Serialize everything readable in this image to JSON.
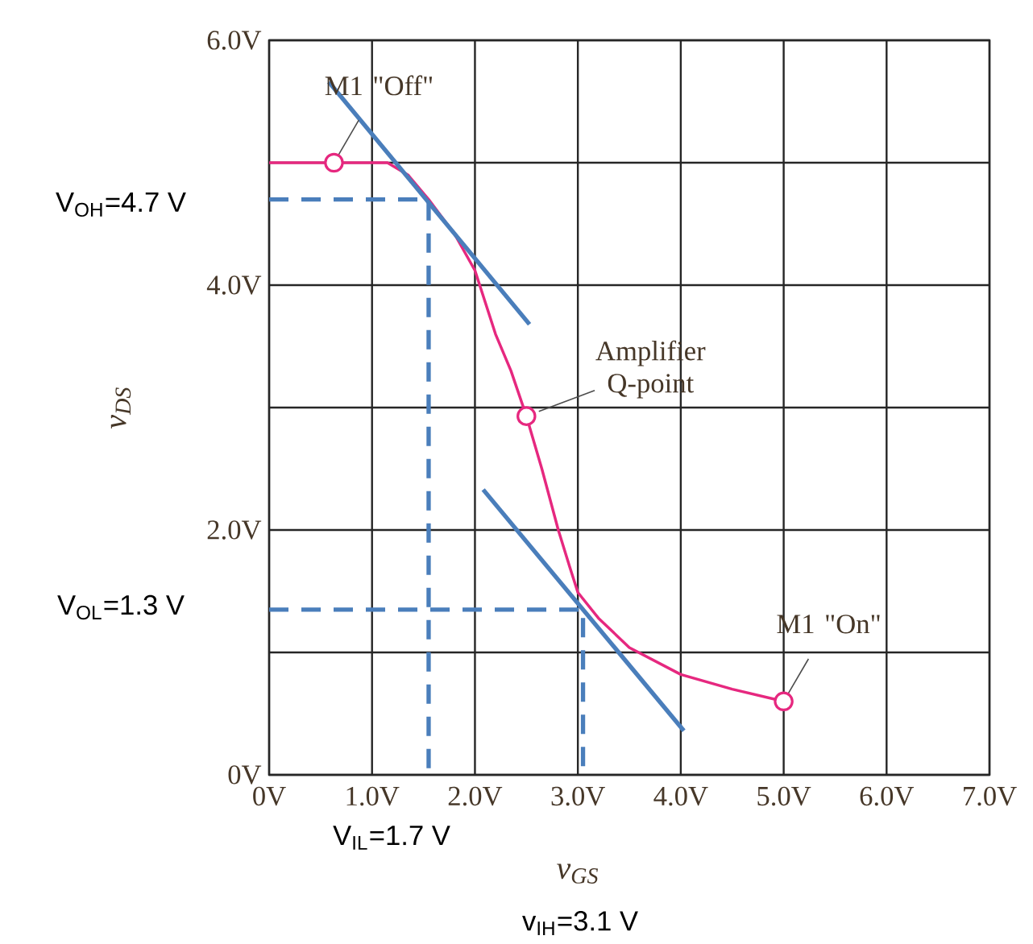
{
  "chart_data": {
    "type": "line",
    "xlabel": "v$_{GS}$",
    "ylabel": "v$_{DS}$",
    "xlim": [
      0,
      7
    ],
    "ylim": [
      0,
      6
    ],
    "xticks": [
      {
        "value": 0,
        "label": "0V"
      },
      {
        "value": 1,
        "label": "1.0V"
      },
      {
        "value": 2,
        "label": "2.0V"
      },
      {
        "value": 3,
        "label": "3.0V"
      },
      {
        "value": 4,
        "label": "4.0V"
      },
      {
        "value": 5,
        "label": "5.0V"
      },
      {
        "value": 6,
        "label": "6.0V"
      },
      {
        "value": 7,
        "label": "7.0V"
      }
    ],
    "yticks": [
      {
        "value": 0,
        "label": "0V"
      },
      {
        "value": 1,
        "label": null
      },
      {
        "value": 2,
        "label": "2.0V"
      },
      {
        "value": 3,
        "label": null
      },
      {
        "value": 4,
        "label": "4.0V"
      },
      {
        "value": 5,
        "label": null
      },
      {
        "value": 6,
        "label": "6.0V"
      }
    ],
    "grid": true,
    "series": [
      {
        "type": "line",
        "color": "#e6287f",
        "x": [
          0,
          0.63,
          1.15,
          1.35,
          1.55,
          1.8,
          2.0,
          2.2,
          2.35,
          2.5,
          2.65,
          2.81,
          2.92,
          3.0,
          3.2,
          3.5,
          4.0,
          4.5,
          5.0
        ],
        "values": [
          5,
          5,
          5,
          4.9,
          4.7,
          4.42,
          4.12,
          3.6,
          3.3,
          2.93,
          2.5,
          2.0,
          1.7,
          1.49,
          1.28,
          1.04,
          0.82,
          0.7,
          0.6
        ]
      },
      {
        "type": "scatter",
        "marker": "circle",
        "color": "#e6287f",
        "x": [
          0.63,
          2.5,
          5.0
        ],
        "values": [
          5,
          2.93,
          0.6
        ]
      },
      {
        "type": "line",
        "color": "#4a7ebb",
        "x": [
          0.58,
          2.53
        ],
        "values": [
          5.66,
          3.68
        ]
      },
      {
        "type": "line",
        "color": "#4a7ebb",
        "x": [
          2.08,
          4.03
        ],
        "values": [
          2.33,
          0.36
        ]
      },
      {
        "type": "line",
        "color": "#4a7ebb",
        "line_style": "dashed",
        "x": [
          0,
          1.55,
          1.55
        ],
        "values": [
          4.7,
          4.7,
          0
        ]
      },
      {
        "type": "line",
        "color": "#4a7ebb",
        "line_style": "dashed",
        "x": [
          0,
          3.05,
          3.05
        ],
        "values": [
          1.35,
          1.35,
          0
        ]
      }
    ],
    "annotations": [
      {
        "text": "M1 \"Off\"",
        "x": 0.63,
        "y": 5
      },
      {
        "text": "Amplifier Q-point",
        "x": 2.5,
        "y": 2.93
      },
      {
        "text": "M1 \"On\"",
        "x": 5.0,
        "y": 0.6
      },
      "V$_{OH}$=4.7 V",
      "V$_{OL}$=1.3 V",
      "V$_{IL}$=1.7 V",
      "v$_{IH}$=3.1 V"
    ]
  }
}
